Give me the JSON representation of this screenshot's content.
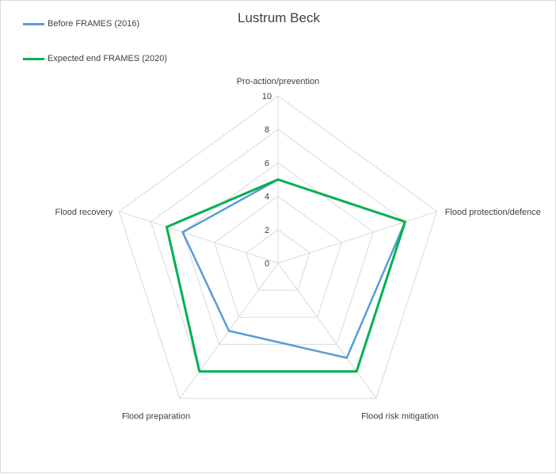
{
  "chart_data": {
    "type": "radar",
    "title": "Lustrum Beck",
    "categories": [
      "Pro-action/prevention",
      "Flood protection/defence",
      "Flood risk mitigation",
      "Flood preparation",
      "Flood recovery"
    ],
    "series": [
      {
        "name": "Before FRAMES (2016)",
        "color": "#5b9bd5",
        "values": [
          5,
          8,
          7,
          5,
          6
        ]
      },
      {
        "name": "Expected end FRAMES (2020)",
        "color": "#00b050",
        "values": [
          5,
          8,
          8,
          8,
          7
        ]
      }
    ],
    "rlim": [
      0,
      10
    ],
    "ticks": [
      0,
      2,
      4,
      6,
      8,
      10
    ],
    "grid": true,
    "legend_position": "top-left"
  }
}
